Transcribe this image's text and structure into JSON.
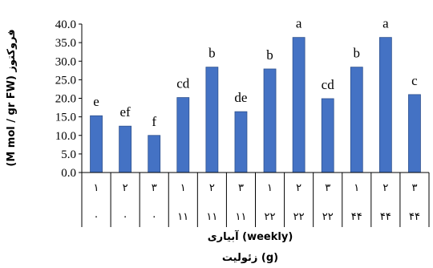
{
  "chart_data": {
    "type": "bar",
    "ylabel": "(M mol / gr FW) فروکتوز",
    "xlabel_irrigation": "آبیاری (weekly)",
    "xlabel_zeolite": "زئولیت (g)",
    "ylim": [
      0,
      40
    ],
    "yticks": [
      "0.0",
      "5.0",
      "10.0",
      "15.0",
      "20.0",
      "25.0",
      "30.0",
      "35.0",
      "40.0"
    ],
    "irrigation_labels": [
      "۱",
      "۲",
      "۳",
      "۱",
      "۲",
      "۳",
      "۱",
      "۲",
      "۳",
      "۱",
      "۲",
      "۳"
    ],
    "zeolite_labels": [
      "۰",
      "۰",
      "۰",
      "۱۱",
      "۱۱",
      "۱۱",
      "۲۲",
      "۲۲",
      "۲۲",
      "۴۴",
      "۴۴",
      "۴۴"
    ],
    "values": [
      15.3,
      12.5,
      10.0,
      20.2,
      28.4,
      16.4,
      27.9,
      36.4,
      19.9,
      28.4,
      36.4,
      21.0
    ],
    "significance": [
      "e",
      "ef",
      "f",
      "cd",
      "b",
      "de",
      "b",
      "a",
      "cd",
      "b",
      "a",
      "c"
    ],
    "bar_color": "#4472C4",
    "grid": false,
    "legend": "none"
  }
}
